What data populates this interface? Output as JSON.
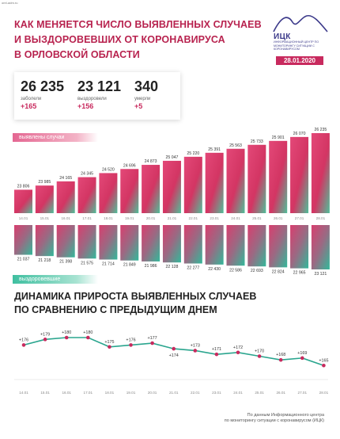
{
  "url": "orel-adm.ru",
  "title": {
    "line1": "КАК МЕНЯЕТСЯ ЧИСЛО ВЫЯВЛЕННЫХ СЛУЧАЕВ",
    "line2": "И ВЫЗДОРОВЕВШИХ ОТ КОРОНАВИРУСА",
    "line3": "В ОРЛОВСКОЙ ОБЛАСТИ"
  },
  "logo": {
    "name": "ИЦК",
    "subtitle": "ИНФОРМАЦИОННЫЙ ЦЕНТР ПО МОНИТОРИНГУ СИТУАЦИИ С КОРОНАВИРУСОМ"
  },
  "date": "28.01.2020",
  "stats": [
    {
      "value": "26 235",
      "label": "заболели",
      "delta": "+165"
    },
    {
      "value": "23 121",
      "label": "выздоровели",
      "delta": "+156"
    },
    {
      "value": "340",
      "label": "умерли",
      "delta": "+5"
    }
  ],
  "labels": {
    "detected": "выявлены случаи",
    "recovered": "выздоровевшие"
  },
  "subtitle": {
    "line1": "ДИНАМИКА ПРИРОСТА ВЫЯВЛЕННЫХ СЛУЧАЕВ",
    "line2": "ПО СРАВНЕНИЮ С ПРЕДЫДУЩИМ ДНЕМ"
  },
  "source": {
    "line1": "По данным Информационного центра",
    "line2": "по мониторингу ситуации с коронавирусом (ИЦК)"
  },
  "colors": {
    "accent": "#c82a5e",
    "teal": "#3fbfa0",
    "line": "#2aa58e",
    "point": "#c82a5e"
  },
  "chart_data": [
    {
      "type": "bar",
      "categories": [
        "14.01",
        "15.01",
        "16.01",
        "17.01",
        "18.01",
        "19.01",
        "20.01",
        "21.01",
        "22.01",
        "23.01",
        "24.01",
        "25.01",
        "26.01",
        "27.01",
        "28.01"
      ],
      "series": [
        {
          "name": "выявлены случаи",
          "values": [
            23806,
            23985,
            24165,
            24345,
            24520,
            24696,
            24873,
            25047,
            25220,
            25391,
            25563,
            25733,
            25901,
            26070,
            26235
          ],
          "labels": [
            "23 806",
            "23 985",
            "24 165",
            "24 345",
            "24 520",
            "24 696",
            "24 873",
            "25 047",
            "25 220",
            "25 391",
            "25 563",
            "25 733",
            "25 901",
            "26 070",
            "26 235"
          ]
        }
      ]
    },
    {
      "type": "bar",
      "categories": [
        "14.01",
        "15.01",
        "16.01",
        "17.01",
        "18.01",
        "19.01",
        "20.01",
        "21.01",
        "22.01",
        "23.01",
        "24.01",
        "25.01",
        "26.01",
        "27.01",
        "28.01"
      ],
      "series": [
        {
          "name": "выздоровевшие",
          "values": [
            21037,
            21218,
            21398,
            21575,
            21714,
            21849,
            21986,
            22128,
            22277,
            22430,
            22586,
            22693,
            22824,
            22965,
            23121
          ],
          "labels": [
            "21 037",
            "21 218",
            "21 398",
            "21 575",
            "21 714",
            "21 849",
            "21 986",
            "22 128",
            "22 277",
            "22 430",
            "22 586",
            "22 693",
            "22 824",
            "22 965",
            "23 121"
          ]
        }
      ]
    },
    {
      "type": "line",
      "title": "ДИНАМИКА ПРИРОСТА ВЫЯВЛЕННЫХ СЛУЧАЕВ ПО СРАВНЕНИЮ С ПРЕДЫДУЩИМ ДНЕМ",
      "x": [
        "14.01",
        "15.01",
        "16.01",
        "17.01",
        "18.01",
        "19.01",
        "20.01",
        "21.01",
        "22.01",
        "23.01",
        "24.01",
        "25.01",
        "26.01",
        "27.01",
        "28.01"
      ],
      "series": [
        {
          "values": [
            176,
            179,
            180,
            180,
            175,
            176,
            177,
            174,
            173,
            171,
            172,
            170,
            168,
            169,
            165
          ],
          "labels": [
            "+176",
            "+179",
            "+180",
            "+180",
            "+175",
            "+176",
            "+177",
            "+174",
            "+173",
            "+171",
            "+172",
            "+170",
            "+168",
            "+169",
            "+165"
          ]
        }
      ]
    }
  ]
}
